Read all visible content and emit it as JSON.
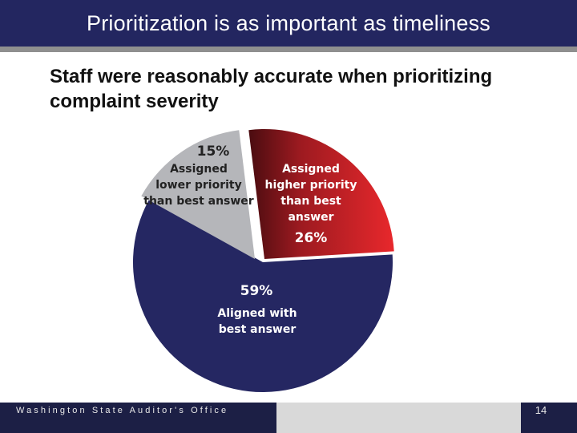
{
  "slide": {
    "title": "Prioritization is as important as timeliness",
    "subtitle": "Staff were reasonably accurate when prioritizing complaint severity"
  },
  "chart_data": {
    "type": "pie",
    "title": "",
    "slices": [
      {
        "pct_label": "15%",
        "value": 15,
        "label_lines": [
          "Assigned",
          "lower priority",
          "than best answer"
        ],
        "color": "#b5b6ba"
      },
      {
        "pct_label": "26%",
        "value": 26,
        "label_lines": [
          "Assigned",
          "higher priority",
          "than best",
          "answer"
        ],
        "color": "#d62a2e"
      },
      {
        "pct_label": "59%",
        "value": 59,
        "label_lines": [
          "Aligned with",
          "best answer"
        ],
        "color": "#252762"
      }
    ]
  },
  "footer": {
    "organization": "Washington State Auditor's Office",
    "page_number": "14"
  }
}
